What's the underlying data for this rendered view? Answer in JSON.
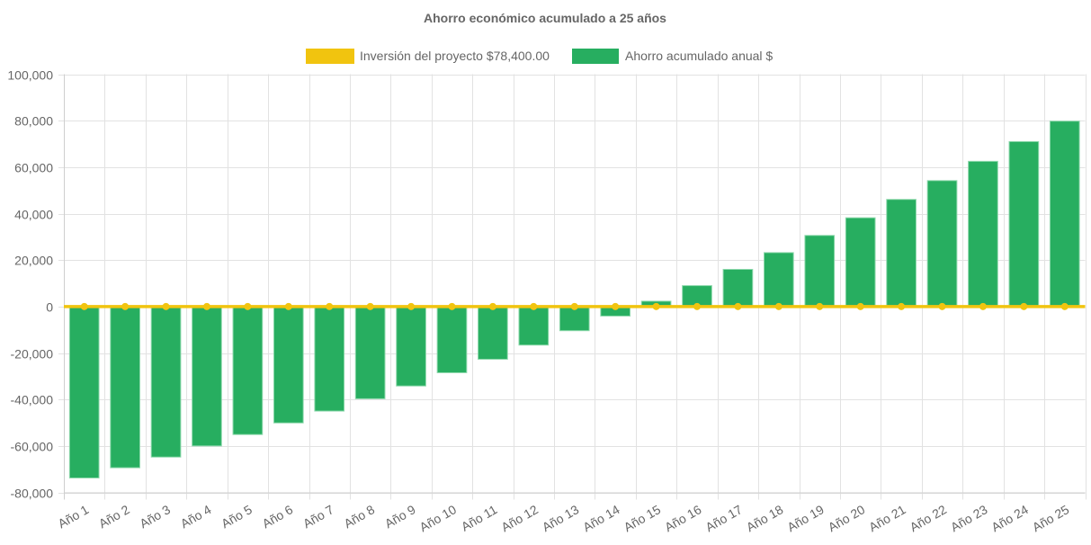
{
  "chart_data": {
    "type": "bar",
    "title": "Ahorro económico acumulado a 25 años",
    "xlabel": "",
    "ylabel": "",
    "categories": [
      "Año 1",
      "Año 2",
      "Año 3",
      "Año 4",
      "Año 5",
      "Año 6",
      "Año 7",
      "Año 8",
      "Año 9",
      "Año 10",
      "Año 11",
      "Año 12",
      "Año 13",
      "Año 14",
      "Año 15",
      "Año 16",
      "Año 17",
      "Año 18",
      "Año 19",
      "Año 20",
      "Año 21",
      "Año 22",
      "Año 23",
      "Año 24",
      "Año 25"
    ],
    "series": [
      {
        "name": "Inversión del proyecto $78,400.00",
        "type": "line",
        "color": "#f1c40f",
        "values": [
          0,
          0,
          0,
          0,
          0,
          0,
          0,
          0,
          0,
          0,
          0,
          0,
          0,
          0,
          0,
          0,
          0,
          0,
          0,
          0,
          0,
          0,
          0,
          0,
          0
        ]
      },
      {
        "name": "Ahorro acumulado anual $",
        "type": "bar",
        "color": "#27ae60",
        "values": [
          -73800,
          -69400,
          -64800,
          -60000,
          -55100,
          -50100,
          -45000,
          -39700,
          -34200,
          -28500,
          -22700,
          -16600,
          -10400,
          -4100,
          2300,
          9000,
          16000,
          23200,
          30600,
          38200,
          46100,
          54200,
          62500,
          71000,
          79800
        ]
      }
    ],
    "ylim": [
      -80000,
      100000
    ],
    "yticks": [
      100000,
      80000,
      60000,
      40000,
      20000,
      0,
      -20000,
      -40000,
      -60000,
      -80000
    ],
    "ytick_labels": [
      "100,000",
      "80,000",
      "60,000",
      "40,000",
      "20,000",
      "0",
      "-20,000",
      "-40,000",
      "-60,000",
      "-80,000"
    ],
    "grid": true,
    "legend_position": "top-center"
  }
}
